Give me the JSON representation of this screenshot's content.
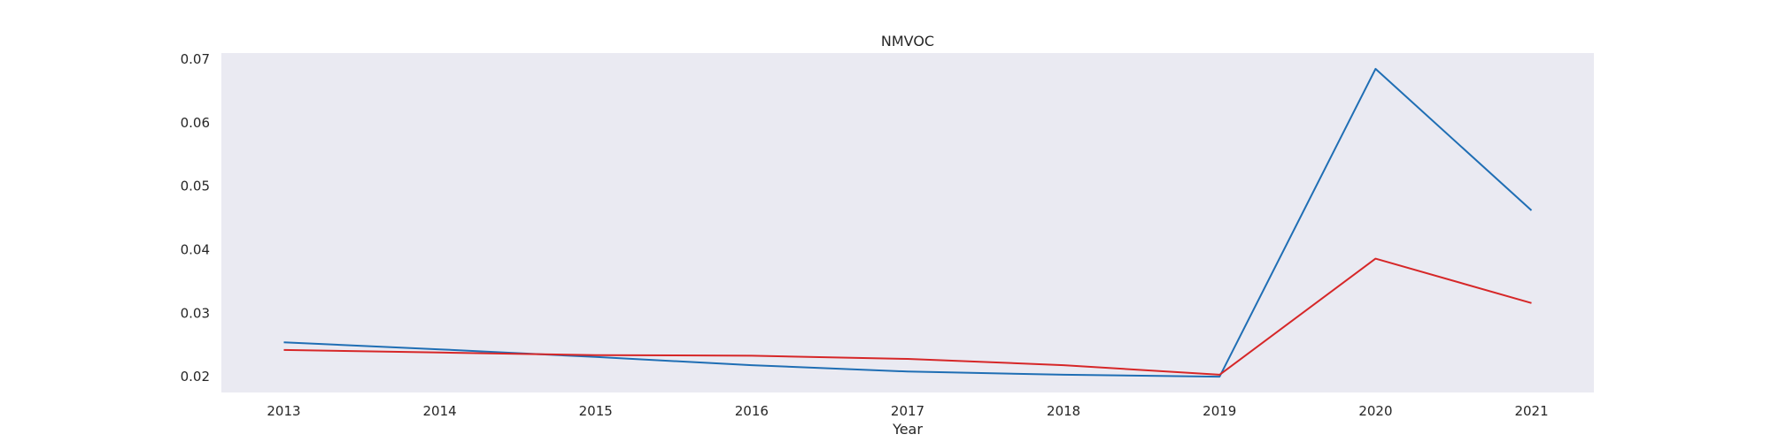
{
  "chart_data": {
    "type": "line",
    "title": "NMVOC",
    "xlabel": "Year",
    "ylabel": "",
    "x": [
      2013,
      2014,
      2015,
      2016,
      2017,
      2018,
      2019,
      2020,
      2021
    ],
    "xlim": [
      2012.6,
      2021.4
    ],
    "ylim": [
      0.0175,
      0.071
    ],
    "yticks": [
      0.02,
      0.03,
      0.04,
      0.05,
      0.06,
      0.07
    ],
    "ytick_labels": [
      "0.02",
      "0.03",
      "0.04",
      "0.05",
      "0.06",
      "0.07"
    ],
    "xtick_labels": [
      "2013",
      "2014",
      "2015",
      "2016",
      "2017",
      "2018",
      "2019",
      "2020",
      "2021"
    ],
    "grid": false,
    "plot_background": "#EAEAF2",
    "series": [
      {
        "color": "#1F6EB4",
        "values": [
          0.0254,
          0.0243,
          0.0231,
          0.0218,
          0.0208,
          0.0203,
          0.02,
          0.0685,
          0.0462
        ]
      },
      {
        "color": "#D62728",
        "values": [
          0.0242,
          0.0238,
          0.0234,
          0.0233,
          0.0228,
          0.0218,
          0.0203,
          0.0386,
          0.0316
        ]
      }
    ]
  }
}
